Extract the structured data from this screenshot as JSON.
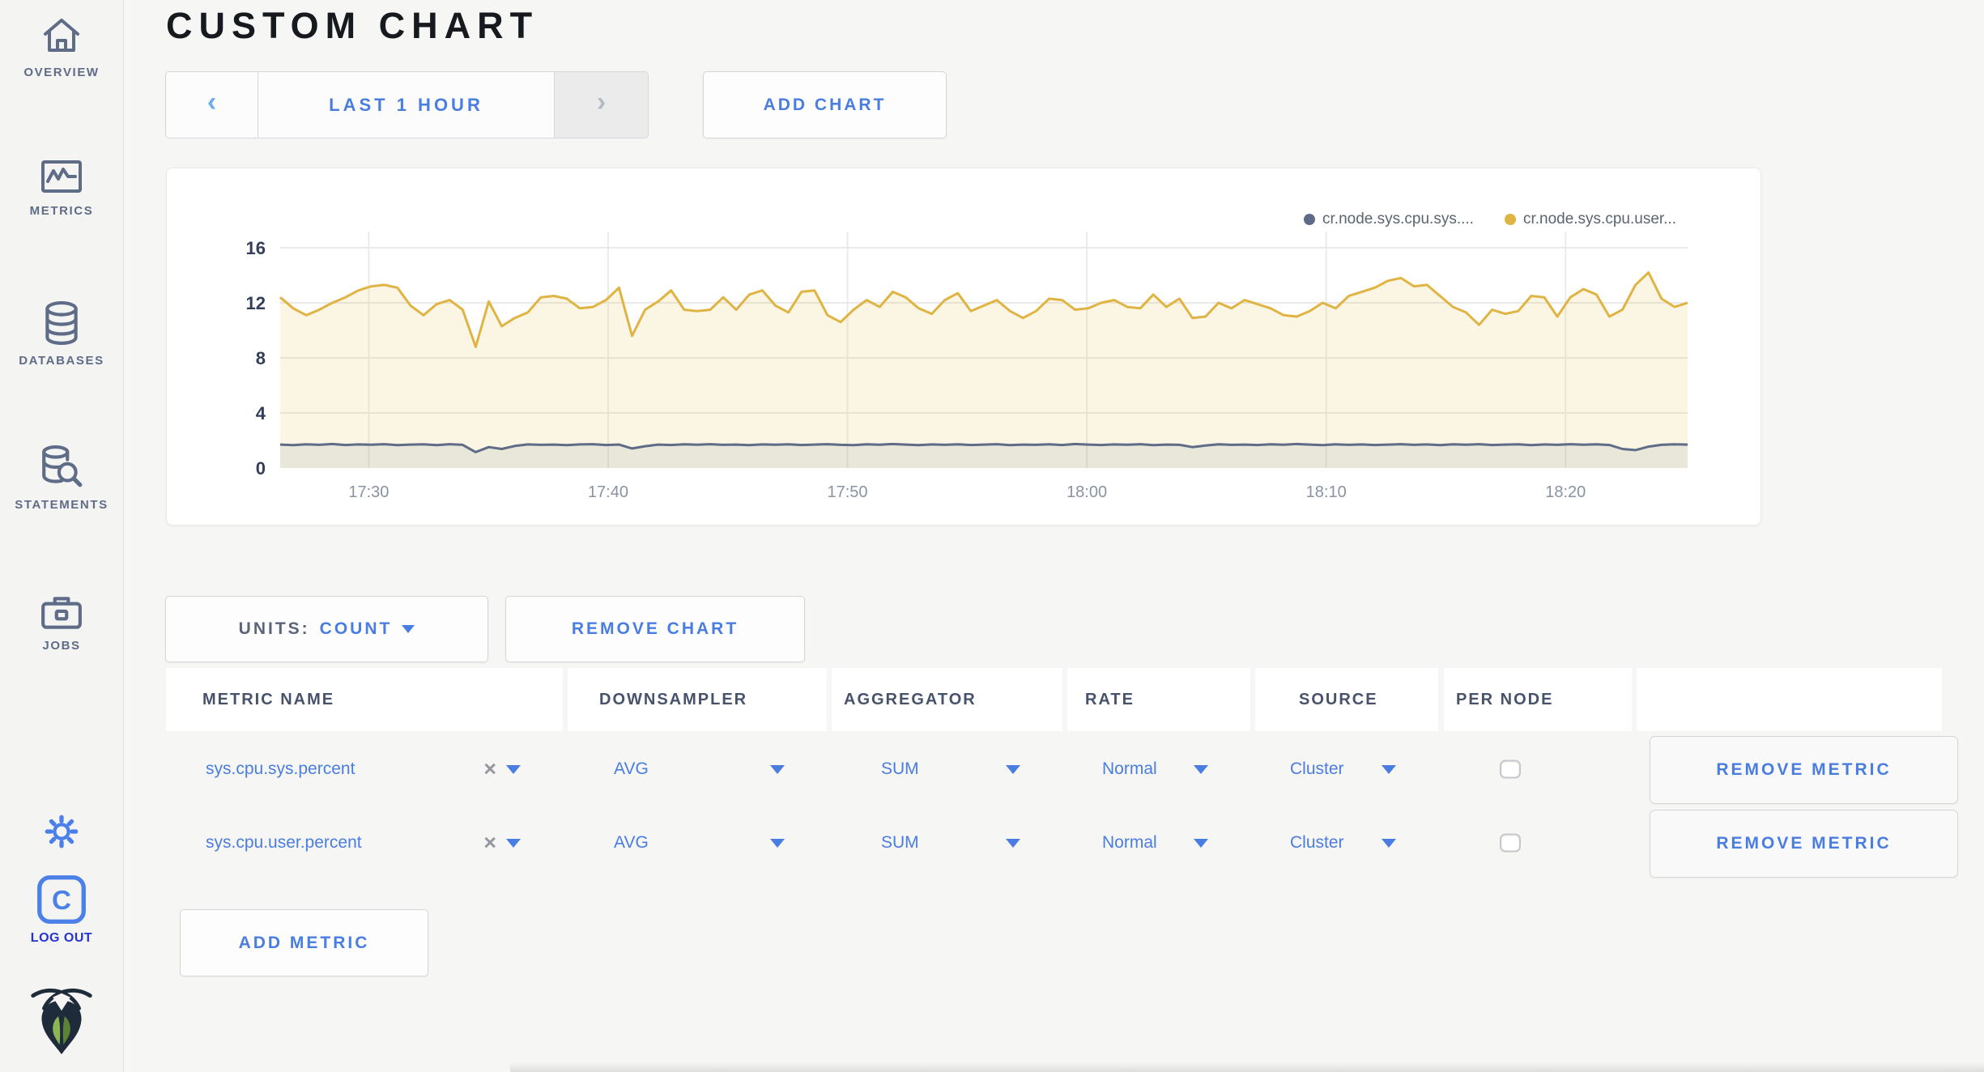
{
  "sidebar": {
    "items": [
      {
        "icon": "home-icon",
        "label": "OVERVIEW"
      },
      {
        "icon": "metrics-icon",
        "label": "METRICS"
      },
      {
        "icon": "database-icon",
        "label": "DATABASES"
      },
      {
        "icon": "statements-icon",
        "label": "STATEMENTS"
      },
      {
        "icon": "jobs-icon",
        "label": "JOBS"
      }
    ],
    "logo_letter": "C",
    "logout_label": "LOG OUT"
  },
  "header": {
    "title": "CUSTOM CHART"
  },
  "time_selector": {
    "prev_icon": "‹",
    "label": "LAST 1 HOUR",
    "next_icon": "›"
  },
  "add_chart_label": "ADD CHART",
  "units": {
    "label": "UNITS:",
    "value": "COUNT"
  },
  "remove_chart_label": "REMOVE CHART",
  "add_metric_label": "ADD METRIC",
  "ui": {
    "clear_icon": "×",
    "accent_blue": "#4a7de0",
    "logout_blue": "#2334d0",
    "slate": "#5f6c87"
  },
  "table": {
    "headers": [
      "METRIC NAME",
      "DOWNSAMPLER",
      "AGGREGATOR",
      "RATE",
      "SOURCE",
      "PER NODE"
    ],
    "rows": [
      {
        "metric": "sys.cpu.sys.percent",
        "downsampler": "AVG",
        "aggregator": "SUM",
        "rate": "Normal",
        "source": "Cluster",
        "per_node": false,
        "remove_label": "REMOVE METRIC"
      },
      {
        "metric": "sys.cpu.user.percent",
        "downsampler": "AVG",
        "aggregator": "SUM",
        "rate": "Normal",
        "source": "Cluster",
        "per_node": false,
        "remove_label": "REMOVE METRIC"
      }
    ]
  },
  "chart_data": {
    "type": "area",
    "title": "",
    "xlabel": "",
    "ylabel": "",
    "ylim": [
      0,
      16
    ],
    "y_ticks": [
      0,
      4,
      8,
      12,
      16
    ],
    "y_grid": [
      4,
      8,
      12,
      16
    ],
    "grid": true,
    "legend_position": "top-right",
    "x_range_min": [
      0,
      58.8
    ],
    "x_ticks": [
      {
        "label": "17:30",
        "min": 3.7
      },
      {
        "label": "17:40",
        "min": 13.7
      },
      {
        "label": "17:50",
        "min": 23.7
      },
      {
        "label": "18:00",
        "min": 33.7
      },
      {
        "label": "18:10",
        "min": 43.7
      },
      {
        "label": "18:20",
        "min": 53.7
      }
    ],
    "series": [
      {
        "name": "cr.node.sys.cpu.sys....",
        "color": "#5f6c87",
        "fill": "rgba(95,108,135,0.11)",
        "values": [
          1.7,
          1.66,
          1.72,
          1.68,
          1.74,
          1.67,
          1.71,
          1.69,
          1.73,
          1.66,
          1.7,
          1.72,
          1.66,
          1.73,
          1.68,
          1.15,
          1.52,
          1.38,
          1.6,
          1.71,
          1.68,
          1.7,
          1.66,
          1.71,
          1.73,
          1.67,
          1.7,
          1.42,
          1.58,
          1.7,
          1.67,
          1.72,
          1.69,
          1.73,
          1.68,
          1.7,
          1.66,
          1.71,
          1.69,
          1.72,
          1.67,
          1.7,
          1.73,
          1.68,
          1.66,
          1.72,
          1.69,
          1.74,
          1.7,
          1.66,
          1.71,
          1.68,
          1.72,
          1.67,
          1.7,
          1.73,
          1.66,
          1.7,
          1.68,
          1.72,
          1.67,
          1.74,
          1.7,
          1.67,
          1.71,
          1.69,
          1.73,
          1.66,
          1.7,
          1.68,
          1.52,
          1.63,
          1.72,
          1.68,
          1.7,
          1.67,
          1.72,
          1.69,
          1.74,
          1.7,
          1.66,
          1.72,
          1.68,
          1.71,
          1.67,
          1.7,
          1.73,
          1.68,
          1.71,
          1.66,
          1.72,
          1.69,
          1.73,
          1.67,
          1.7,
          1.72,
          1.66,
          1.71,
          1.68,
          1.73,
          1.69,
          1.72,
          1.67,
          1.38,
          1.3,
          1.55,
          1.68,
          1.72,
          1.7
        ]
      },
      {
        "name": "cr.node.sys.cpu.user...",
        "color": "#e0b443",
        "fill": "rgba(228,186,72,0.15)",
        "values": [
          12.4,
          11.6,
          11.1,
          11.5,
          12.0,
          12.4,
          12.9,
          13.2,
          13.3,
          13.1,
          11.8,
          11.1,
          11.9,
          12.2,
          11.5,
          8.8,
          12.1,
          10.3,
          10.9,
          11.3,
          12.4,
          12.5,
          12.3,
          11.6,
          11.7,
          12.2,
          13.1,
          9.6,
          11.5,
          12.1,
          12.9,
          11.5,
          11.4,
          11.5,
          12.4,
          11.5,
          12.6,
          12.9,
          11.8,
          11.3,
          12.8,
          12.9,
          11.1,
          10.6,
          11.5,
          12.2,
          11.7,
          12.8,
          12.4,
          11.6,
          11.2,
          12.2,
          12.7,
          11.4,
          11.8,
          12.2,
          11.4,
          10.9,
          11.4,
          12.3,
          12.2,
          11.5,
          11.6,
          12.0,
          12.2,
          11.7,
          11.6,
          12.6,
          11.7,
          12.3,
          10.9,
          11.0,
          12.0,
          11.6,
          12.2,
          11.9,
          11.6,
          11.1,
          11.0,
          11.4,
          12.0,
          11.6,
          12.5,
          12.8,
          13.1,
          13.6,
          13.8,
          13.2,
          13.3,
          12.5,
          11.7,
          11.3,
          10.4,
          11.5,
          11.2,
          11.4,
          12.5,
          12.4,
          11.0,
          12.4,
          13.0,
          12.6,
          11.0,
          11.5,
          13.3,
          14.2,
          12.3,
          11.7,
          12.0
        ]
      }
    ]
  }
}
